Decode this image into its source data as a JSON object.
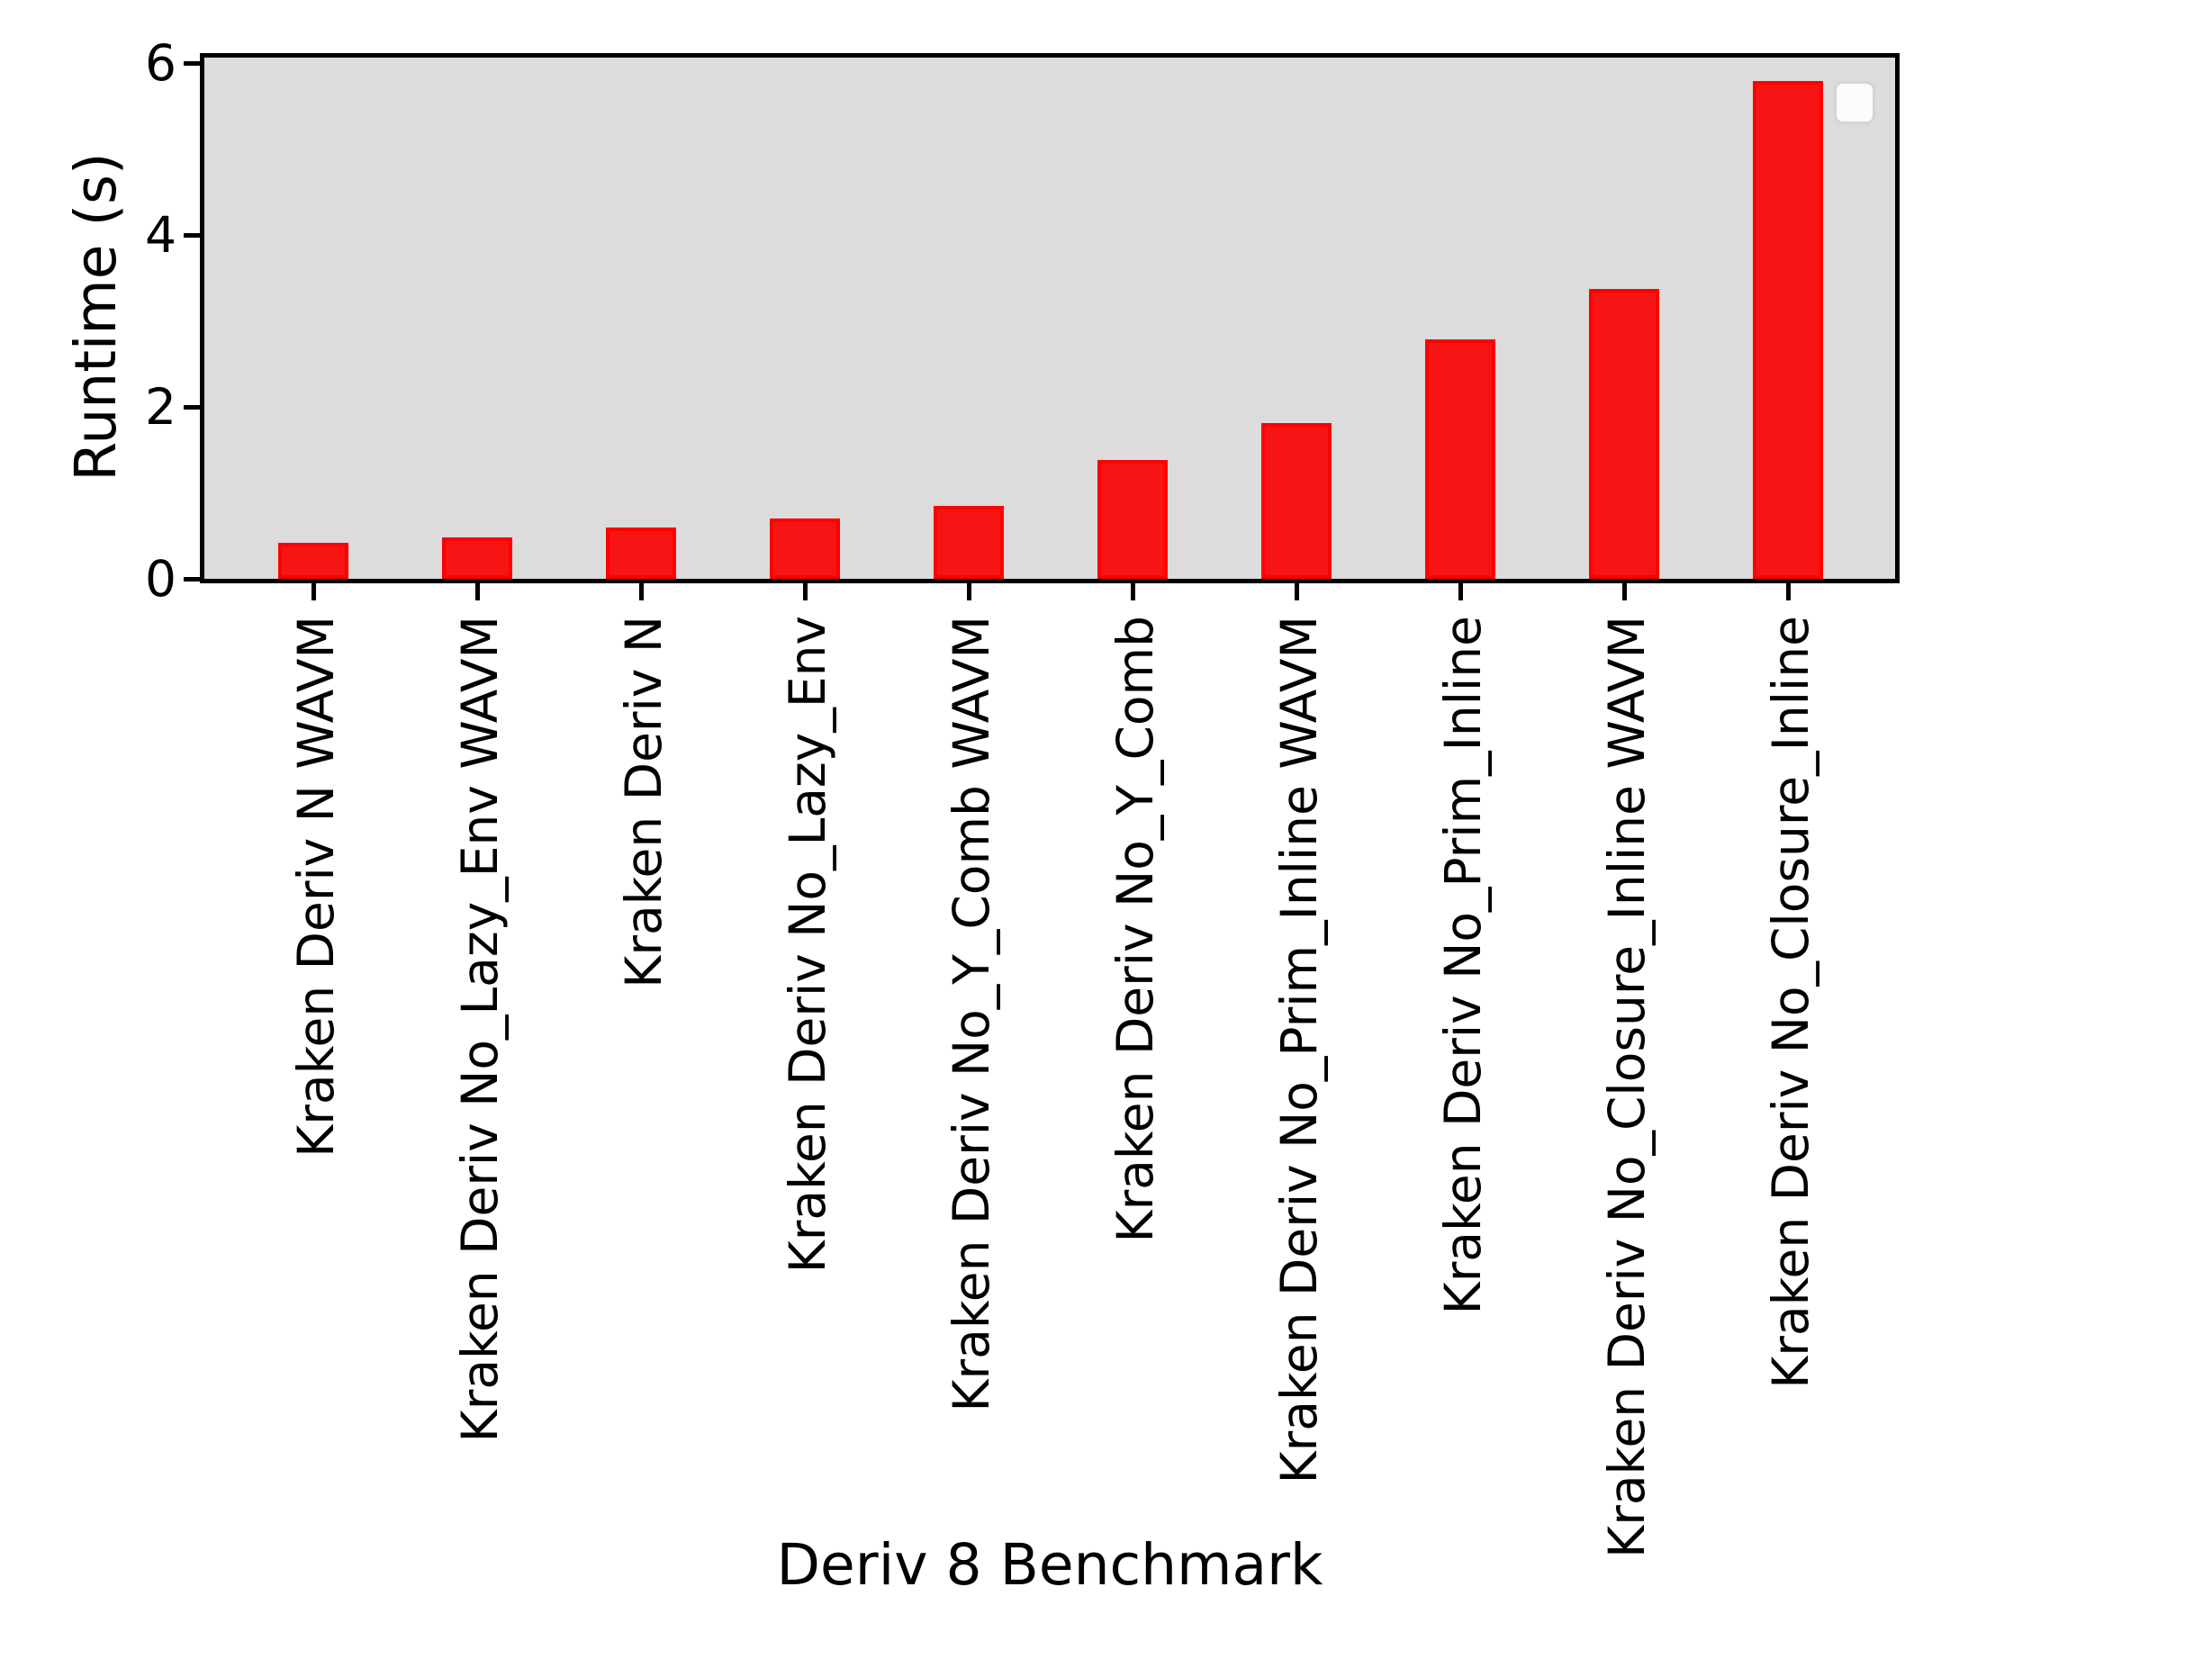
{
  "chart_data": {
    "type": "bar",
    "title": "",
    "xlabel": "Deriv 8 Benchmark",
    "ylabel": "Runtime (s)",
    "categories": [
      "Kraken Deriv N WAVM",
      "Kraken Deriv No_Lazy_Env WAVM",
      "Kraken Deriv N",
      "Kraken Deriv No_Lazy_Env",
      "Kraken Deriv No_Y_Comb WAVM",
      "Kraken Deriv No_Y_Comb",
      "Kraken Deriv No_Prim_Inline WAVM",
      "Kraken Deriv No_Prim_Inline",
      "Kraken Deriv No_Closure_Inline WAVM",
      "Kraken Deriv No_Closure_Inline"
    ],
    "values": [
      0.42,
      0.48,
      0.6,
      0.7,
      0.85,
      1.38,
      1.81,
      2.79,
      3.37,
      5.8
    ],
    "yticks": [
      0,
      2,
      4,
      6
    ],
    "ylim": [
      0,
      6.09
    ],
    "grid": false,
    "legend": {
      "visible": true,
      "entries": [],
      "position": "upper-right",
      "fill_color": "#fbfbfb",
      "border_color": "#d4d4d4"
    },
    "colors": {
      "bar_fill": "#f71414",
      "bar_edge": "#ff0000",
      "plot_background": "#dcdcdc",
      "figure_background": "#ffffff",
      "axis_color": "#000000",
      "text_color": "#000000"
    }
  }
}
